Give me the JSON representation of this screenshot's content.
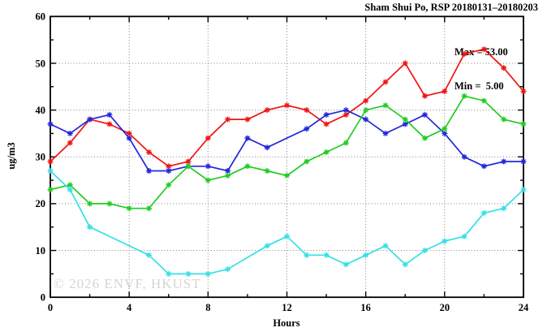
{
  "title": "Sham Shui Po, RSP 20180131–20180203",
  "annotation": {
    "max_label": "Max = 53.00",
    "min_label": "Min =  5.00"
  },
  "watermark": "© 2026 ENVF, HKUST",
  "chart_data": {
    "type": "line",
    "title": "Sham Shui Po, RSP 20180131–20180203",
    "xlabel": "Hours",
    "ylabel": "ug/m3",
    "xlim": [
      0,
      24
    ],
    "ylim": [
      0,
      60
    ],
    "x_major_ticks": [
      0,
      4,
      8,
      12,
      16,
      20,
      24
    ],
    "x_minor_ticks": [
      2,
      6,
      10,
      14,
      18,
      22
    ],
    "y_major_ticks": [
      0,
      10,
      20,
      30,
      40,
      50,
      60
    ],
    "y_minor_ticks": [
      5,
      15,
      25,
      35,
      45,
      55
    ],
    "grid": {
      "h_lines": [
        10,
        20,
        30,
        40,
        50
      ],
      "v_lines": [
        4,
        8,
        12,
        16,
        20
      ],
      "style": "dotted"
    },
    "legend_position": "none",
    "stats": {
      "max": 53.0,
      "min": 5.0
    },
    "x": [
      0,
      1,
      2,
      3,
      4,
      5,
      6,
      7,
      8,
      9,
      10,
      11,
      12,
      13,
      14,
      15,
      16,
      17,
      18,
      19,
      20,
      21,
      22,
      23,
      24
    ],
    "series": [
      {
        "name": "line-red",
        "color": "#ee1411",
        "values": [
          29,
          33,
          38,
          37,
          35,
          31,
          28,
          29,
          34,
          38,
          38,
          40,
          41,
          40,
          37,
          39,
          42,
          46,
          50,
          43,
          44,
          52,
          53,
          49,
          44
        ]
      },
      {
        "name": "line-blue",
        "color": "#2126dd",
        "values": [
          37,
          35,
          38,
          39,
          34,
          27,
          27,
          28,
          28,
          27,
          34,
          32,
          null,
          36,
          39,
          40,
          38,
          35,
          37,
          39,
          35,
          30,
          28,
          29,
          29
        ]
      },
      {
        "name": "line-green",
        "color": "#22cc22",
        "values": [
          23,
          24,
          20,
          20,
          19,
          19,
          24,
          28,
          25,
          26,
          28,
          27,
          26,
          29,
          31,
          33,
          40,
          41,
          38,
          34,
          36,
          43,
          42,
          38,
          37
        ]
      },
      {
        "name": "line-cyan",
        "color": "#35e0e6",
        "values": [
          27,
          23,
          15,
          null,
          null,
          9,
          5,
          5,
          5,
          6,
          null,
          11,
          13,
          9,
          9,
          7,
          9,
          11,
          7,
          10,
          12,
          13,
          18,
          19,
          23
        ]
      }
    ]
  }
}
